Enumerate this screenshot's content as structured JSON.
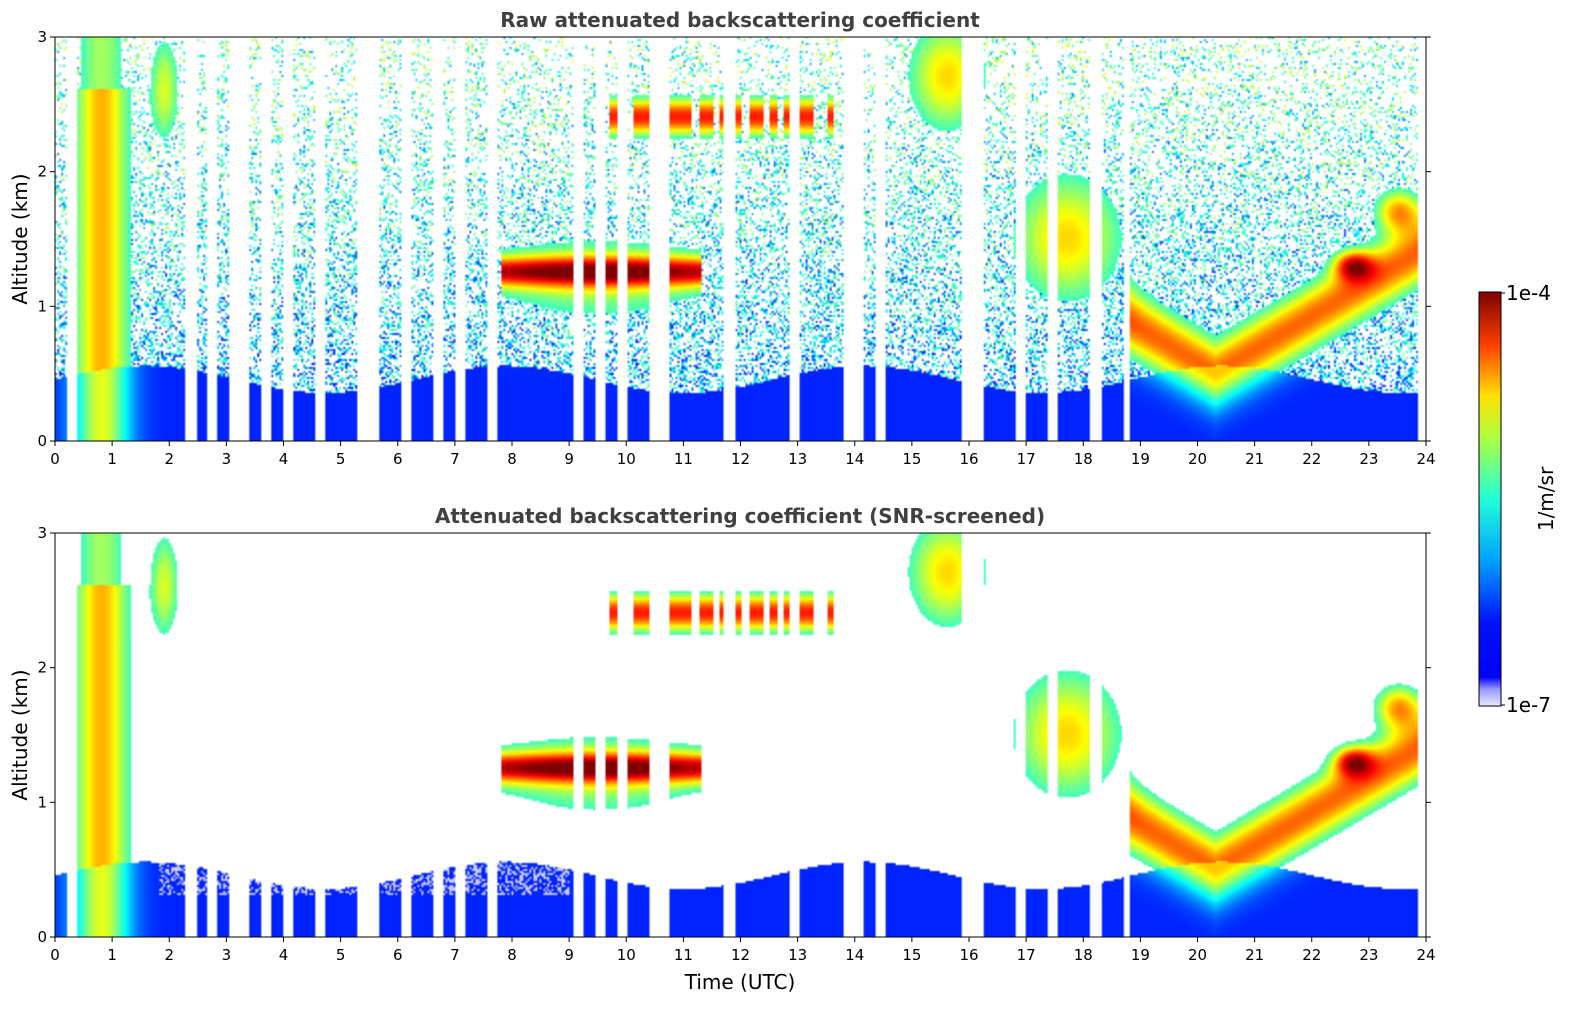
{
  "chart_data": [
    {
      "type": "heatmap",
      "title": "Raw attenuated backscattering coefficient",
      "xlabel": "",
      "ylabel": "Altitude (km)",
      "xlim": [
        0,
        24
      ],
      "ylim": [
        0,
        3
      ],
      "xticks": [
        0,
        1,
        2,
        3,
        4,
        5,
        6,
        7,
        8,
        9,
        10,
        11,
        12,
        13,
        14,
        15,
        16,
        17,
        18,
        19,
        20,
        21,
        22,
        23,
        24
      ],
      "yticks": [
        0,
        1,
        2,
        3
      ],
      "screened": false
    },
    {
      "type": "heatmap",
      "title": "Attenuated backscattering coefficient (SNR-screened)",
      "xlabel": "Time (UTC)",
      "ylabel": "Altitude (km)",
      "xlim": [
        0,
        24
      ],
      "ylim": [
        0,
        3
      ],
      "xticks": [
        0,
        1,
        2,
        3,
        4,
        5,
        6,
        7,
        8,
        9,
        10,
        11,
        12,
        13,
        14,
        15,
        16,
        17,
        18,
        19,
        20,
        21,
        22,
        23,
        24
      ],
      "yticks": [
        0,
        1,
        2,
        3
      ],
      "screened": true
    }
  ],
  "colorbar": {
    "label": "1/m/sr",
    "max_label": "1e-4",
    "min_label": "1e-7",
    "colormap": "jet",
    "scale": "log"
  }
}
